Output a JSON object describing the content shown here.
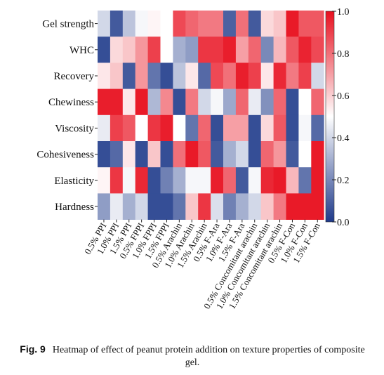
{
  "chart_data": {
    "type": "heatmap",
    "rows": [
      "Gel strength",
      "WHC",
      "Recovery",
      "Chewiness",
      "Viscosity",
      "Cohesiveness",
      "Elasticity",
      "Hardness"
    ],
    "columns": [
      "0.5% PPI",
      "1.0% PPI",
      "1.5% PPI",
      "0.5% FPPI",
      "1.0% FPPI",
      "1.5% FPPI",
      "0.5% Arachin",
      "1.0% Arachin",
      "1.5% Arachin",
      "0.5% F-Ara",
      "1.0% F-Ara",
      "1.5% F-Ara",
      "0.5% Concomitant arachin",
      "1.0% Concomitant arachin",
      "1.5% Concomitant arachin",
      "0.5% F-Con",
      "1.0% F-Con",
      "1.5% F-Con"
    ],
    "values": [
      [
        0.4,
        0.08,
        0.35,
        0.48,
        0.52,
        0.5,
        0.88,
        0.82,
        0.78,
        0.78,
        0.1,
        0.8,
        0.08,
        0.58,
        0.62,
        0.98,
        0.85,
        0.85
      ],
      [
        0.05,
        0.58,
        0.62,
        0.72,
        0.9,
        0.5,
        0.3,
        0.25,
        0.92,
        0.92,
        0.97,
        0.7,
        0.82,
        0.2,
        0.65,
        0.85,
        0.96,
        0.88
      ],
      [
        0.55,
        0.62,
        0.08,
        0.72,
        0.15,
        0.05,
        0.35,
        0.55,
        0.12,
        0.88,
        0.8,
        0.97,
        0.9,
        0.55,
        0.95,
        0.78,
        0.9,
        0.4
      ],
      [
        0.97,
        0.97,
        0.55,
        0.98,
        0.32,
        0.75,
        0.05,
        0.78,
        0.4,
        0.48,
        0.28,
        0.82,
        0.45,
        0.22,
        0.82,
        0.05,
        0.5,
        0.82
      ],
      [
        0.45,
        0.9,
        0.85,
        0.5,
        0.92,
        0.97,
        0.5,
        0.15,
        0.82,
        0.05,
        0.7,
        0.7,
        0.05,
        0.58,
        0.85,
        0.05,
        0.48,
        0.12
      ],
      [
        0.05,
        0.12,
        0.55,
        0.05,
        0.62,
        0.05,
        0.8,
        0.98,
        0.85,
        0.08,
        0.3,
        0.4,
        0.05,
        0.82,
        0.72,
        0.08,
        0.5,
        0.98
      ],
      [
        0.52,
        0.92,
        0.48,
        0.95,
        0.05,
        0.18,
        0.3,
        0.48,
        0.48,
        0.97,
        0.82,
        0.08,
        0.48,
        0.95,
        0.98,
        0.65,
        0.15,
        0.98
      ],
      [
        0.25,
        0.45,
        0.3,
        0.4,
        0.05,
        0.05,
        0.15,
        0.62,
        0.92,
        0.42,
        0.18,
        0.3,
        0.4,
        0.62,
        0.78,
        0.98,
        0.98,
        0.98
      ]
    ],
    "color_scale": {
      "min": 0.0,
      "max": 1.0,
      "low_color": "#1f3a8a",
      "mid_color": "#ffffff",
      "high_color": "#e8101f",
      "ticks": [
        0.0,
        0.2,
        0.4,
        0.6,
        0.8,
        1.0
      ],
      "tick_labels": [
        "0.0",
        "0.2",
        "0.4",
        "0.6",
        "0.8",
        "1.0"
      ]
    },
    "legend_placement": "right",
    "grid": false
  },
  "caption": {
    "label": "Fig. 9",
    "text": "Heatmap of effect of peanut protein addition on texture properties of composite gel."
  }
}
